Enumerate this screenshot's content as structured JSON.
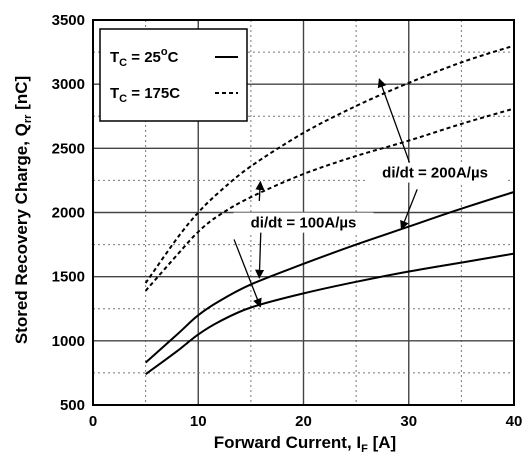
{
  "chart_data": {
    "type": "line",
    "xlabel": "Forward Current, I",
    "xlabel_sub": "F",
    "xlabel_unit": " [A]",
    "ylabel": "Stored Recovery Charge, Q",
    "ylabel_sub": "rr",
    "ylabel_unit": " [nC]",
    "xlim": [
      0,
      40
    ],
    "ylim": [
      500,
      3500
    ],
    "xticks": [
      0,
      10,
      20,
      30,
      40
    ],
    "yticks": [
      500,
      1000,
      1500,
      2000,
      2500,
      3000,
      3500
    ],
    "grid": true,
    "grid_minor_x": 5,
    "grid_minor_y": 250,
    "legend": {
      "position": "top-left",
      "entries": [
        {
          "main": "T",
          "sub": "C",
          "rest": " = 25",
          "sup": "o",
          "tail": "C",
          "style": "solid"
        },
        {
          "main": "T",
          "sub": "C",
          "rest": " = 175C",
          "sup": "",
          "tail": "",
          "style": "dashed"
        }
      ]
    },
    "series": [
      {
        "style": "solid",
        "group": "di/dt = 100A/µs",
        "x": [
          5,
          8,
          10,
          12,
          15,
          20,
          25,
          30,
          35,
          40
        ],
        "y": [
          740,
          920,
          1050,
          1150,
          1260,
          1370,
          1460,
          1540,
          1610,
          1680
        ]
      },
      {
        "style": "solid",
        "group": "di/dt = 200A/µs",
        "x": [
          5,
          8,
          10,
          12,
          15,
          20,
          25,
          30,
          35,
          40
        ],
        "y": [
          830,
          1050,
          1200,
          1310,
          1440,
          1600,
          1750,
          1890,
          2030,
          2160
        ]
      },
      {
        "style": "dashed",
        "group": "di/dt = 100A/µs",
        "x": [
          5,
          8,
          10,
          12,
          15,
          20,
          25,
          30,
          35,
          40
        ],
        "y": [
          1390,
          1670,
          1850,
          1980,
          2120,
          2300,
          2440,
          2560,
          2690,
          2810
        ]
      },
      {
        "style": "dashed",
        "group": "di/dt = 200A/µs",
        "x": [
          5,
          8,
          10,
          12,
          15,
          20,
          25,
          30,
          35,
          40
        ],
        "y": [
          1450,
          1800,
          2000,
          2160,
          2360,
          2620,
          2830,
          3010,
          3170,
          3300
        ]
      }
    ],
    "annotations": [
      {
        "text": "di/dt = 200A/µs",
        "x": 32.5,
        "y": 2280,
        "arrows": [
          [
            30.2,
            2360,
            27.2,
            3040
          ],
          [
            30.8,
            2180,
            29.3,
            1870
          ]
        ]
      },
      {
        "text": "di/dt = 100A/µs",
        "x": 20.0,
        "y": 1890,
        "arrows": [
          [
            16.0,
            1990,
            15.8,
            1490
          ],
          [
            13.4,
            1790,
            15.9,
            1265
          ],
          [
            15.8,
            2090,
            15.9,
            2240
          ]
        ]
      }
    ]
  }
}
